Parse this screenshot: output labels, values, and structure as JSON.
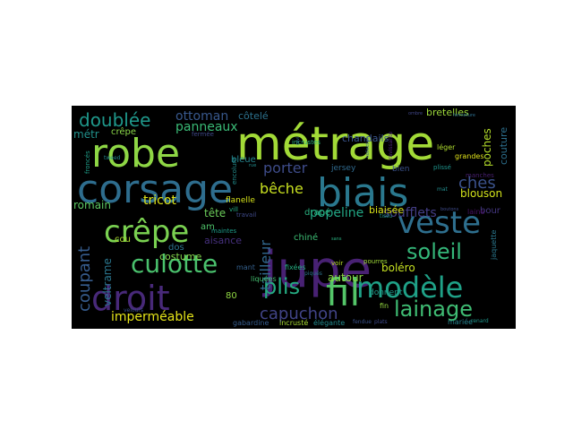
{
  "words": [
    {
      "text": "métrage",
      "color": "#a2da37",
      "size": 52
    },
    {
      "text": "jupe",
      "color": "#482173",
      "size": 56
    },
    {
      "text": "robe",
      "color": "#8ed645",
      "size": 44
    },
    {
      "text": "corsage",
      "color": "#2e6d8e",
      "size": 44
    },
    {
      "text": "biais",
      "color": "#2a788e",
      "size": 44
    },
    {
      "text": "fil",
      "color": "#54c568",
      "size": 42
    },
    {
      "text": "droit",
      "color": "#482979",
      "size": 38
    },
    {
      "text": "crêpe",
      "color": "#7ad151",
      "size": 34
    },
    {
      "text": "veste",
      "color": "#2e6f8e",
      "size": 34
    },
    {
      "text": "modèle",
      "color": "#1fa187",
      "size": 32
    },
    {
      "text": "culotte",
      "color": "#4ac16d",
      "size": 28
    },
    {
      "text": "soleil",
      "color": "#34b679",
      "size": 24
    },
    {
      "text": "lainage",
      "color": "#3fbc73",
      "size": 24
    },
    {
      "text": "plis",
      "color": "#25ac82",
      "size": 24
    },
    {
      "text": "doublée",
      "color": "#1f988b",
      "size": 20
    },
    {
      "text": "capuchon",
      "color": "#414487",
      "size": 18
    },
    {
      "text": "coupant",
      "color": "#365c8d",
      "size": 18
    },
    {
      "text": "ches",
      "color": "#3b528b",
      "size": 18
    },
    {
      "text": "porter",
      "color": "#3e4c8a",
      "size": 16
    },
    {
      "text": "bêche",
      "color": "#c8e020",
      "size": 16
    },
    {
      "text": "tailleur",
      "color": "#31688e",
      "size": 16
    },
    {
      "text": "popeline",
      "color": "#22a785",
      "size": 14
    },
    {
      "text": "soufflets",
      "color": "#433e85",
      "size": 14
    },
    {
      "text": "ottoman",
      "color": "#38588c",
      "size": 14
    },
    {
      "text": "panneaux",
      "color": "#3aba76",
      "size": 14
    },
    {
      "text": "imperméable",
      "color": "#e5e419",
      "size": 14
    },
    {
      "text": "tricot",
      "color": "#dde318",
      "size": 14
    },
    {
      "text": "romain",
      "color": "#5cc863",
      "size": 12
    },
    {
      "text": "veltrame",
      "color": "#2a768e",
      "size": 12
    },
    {
      "text": "métr",
      "color": "#21918c",
      "size": 12
    },
    {
      "text": "tête",
      "color": "#6ccd5a",
      "size": 12
    },
    {
      "text": "poches",
      "color": "#b5de2b",
      "size": 12
    },
    {
      "text": "blouson",
      "color": "#d2e21b",
      "size": 12
    },
    {
      "text": "boléro",
      "color": "#c5e021",
      "size": 12
    },
    {
      "text": "autour",
      "color": "#8bd646",
      "size": 12
    },
    {
      "text": "bretelles",
      "color": "#9dd93b",
      "size": 11
    },
    {
      "text": "chandails",
      "color": "#3a548c",
      "size": 11
    },
    {
      "text": "côtelé",
      "color": "#2c728e",
      "size": 11
    },
    {
      "text": "couture",
      "color": "#2d708e",
      "size": 11
    },
    {
      "text": "biaisée",
      "color": "#dae319",
      "size": 11
    },
    {
      "text": "aisance",
      "color": "#46307e",
      "size": 11
    },
    {
      "text": "costume",
      "color": "#84d44b",
      "size": 11
    },
    {
      "text": "bleue",
      "color": "#25848e",
      "size": 10
    },
    {
      "text": "crêpe",
      "color": "#89d548",
      "size": 10
    },
    {
      "text": "cou",
      "color": "#addc30",
      "size": 10
    },
    {
      "text": "dos",
      "color": "#2c738e",
      "size": 10
    },
    {
      "text": "80",
      "color": "#90d743",
      "size": 10
    },
    {
      "text": "am",
      "color": "#4fc46a",
      "size": 10
    },
    {
      "text": "bour",
      "color": "#453882",
      "size": 10
    },
    {
      "text": "chiné",
      "color": "#3dbc74",
      "size": 10
    },
    {
      "text": "drapé",
      "color": "#29af7f",
      "size": 10
    },
    {
      "text": "flanelle",
      "color": "#d5e21a",
      "size": 9
    },
    {
      "text": "jersey",
      "color": "#306a8e",
      "size": 9
    },
    {
      "text": "bien",
      "color": "#3b528b",
      "size": 9
    },
    {
      "text": "donnent",
      "color": "#1f9a8a",
      "size": 9
    },
    {
      "text": "incrusté",
      "color": "#a8db34",
      "size": 8
    },
    {
      "text": "élégante",
      "color": "#238a8d",
      "size": 8
    },
    {
      "text": "gabardine",
      "color": "#365d8d",
      "size": 8
    },
    {
      "text": "fixées",
      "color": "#26ad81",
      "size": 8
    },
    {
      "text": "liquées",
      "color": "#44bf70",
      "size": 8
    },
    {
      "text": "mant",
      "color": "#34608d",
      "size": 8
    },
    {
      "text": "mariée",
      "color": "#26828e",
      "size": 8
    },
    {
      "text": "fin",
      "color": "#93d741",
      "size": 8
    },
    {
      "text": "grandes",
      "color": "#e1e31b",
      "size": 8
    },
    {
      "text": "léger",
      "color": "#b0dd2f",
      "size": 8
    },
    {
      "text": "laine",
      "color": "#471164",
      "size": 8
    },
    {
      "text": "jaquette",
      "color": "#2a778e",
      "size": 8
    },
    {
      "text": "maintes",
      "color": "#1e9c89",
      "size": 7
    },
    {
      "text": "incrustés",
      "color": "#2fb47c",
      "size": 7
    },
    {
      "text": "encolure",
      "color": "#228d8d",
      "size": 7
    },
    {
      "text": "fermée",
      "color": "#3f4889",
      "size": 7
    },
    {
      "text": "froncés",
      "color": "#1f9e89",
      "size": 7
    },
    {
      "text": "travail",
      "color": "#3e4989",
      "size": 7
    },
    {
      "text": "plissé",
      "color": "#1f948c",
      "size": 7
    },
    {
      "text": "manches",
      "color": "#481f70",
      "size": 7
    },
    {
      "text": "pourres",
      "color": "#a0da39",
      "size": 7
    },
    {
      "text": "voir",
      "color": "#b8de29",
      "size": 7
    },
    {
      "text": "vill",
      "color": "#26ad81",
      "size": 7
    },
    {
      "text": "tweed",
      "color": "#23898e",
      "size": 6
    },
    {
      "text": "mat",
      "color": "#228c8d",
      "size": 6
    },
    {
      "text": "tissu",
      "color": "#1f9a8a",
      "size": 6
    },
    {
      "text": "plats",
      "color": "#3e4989",
      "size": 6
    },
    {
      "text": "renard",
      "color": "#1f958b",
      "size": 6
    },
    {
      "text": "fendue",
      "color": "#3b528b",
      "size": 6
    },
    {
      "text": "piqués",
      "color": "#2c738e",
      "size": 6
    },
    {
      "text": "ravissante",
      "color": "#482475",
      "size": 6
    },
    {
      "text": "velours",
      "color": "#3b528b",
      "size": 6
    },
    {
      "text": "rue",
      "color": "#228c8d",
      "size": 5
    },
    {
      "text": "ombre",
      "color": "#404688",
      "size": 5
    },
    {
      "text": "sans",
      "color": "#29af7f",
      "size": 5
    },
    {
      "text": "ravi",
      "color": "#2f6c8e",
      "size": 5
    },
    {
      "text": "boutons",
      "color": "#3e4a89",
      "size": 5
    },
    {
      "text": "collection",
      "color": "#365c8d",
      "size": 5
    },
    {
      "text": "fermeture",
      "color": "#2d708e",
      "size": 5
    }
  ]
}
